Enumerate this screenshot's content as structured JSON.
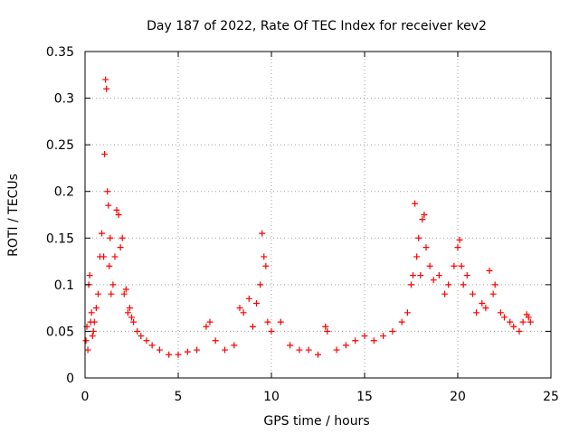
{
  "chart_data": {
    "type": "scatter",
    "title": "Day 187 of 2022, Rate Of TEC Index for receiver kev2",
    "xlabel": "GPS time / hours",
    "ylabel": "ROTI / TECUs",
    "xlim": [
      0,
      25
    ],
    "ylim": [
      0,
      0.35
    ],
    "x_ticks": [
      "0",
      "5",
      "10",
      "15",
      "20",
      "25"
    ],
    "y_ticks": [
      "0",
      "0.05",
      "0.1",
      "0.15",
      "0.2",
      "0.25",
      "0.3",
      "0.35"
    ],
    "grid": true,
    "legend": "none",
    "marker": "plus",
    "color": "#ff0000",
    "series": [
      {
        "x": [
          0.05,
          0.1,
          0.15,
          0.2,
          0.25,
          0.3,
          0.35,
          0.4,
          0.45,
          0.5,
          0.6,
          0.7,
          0.8,
          0.9,
          1.0,
          1.05,
          1.1,
          1.15,
          1.2,
          1.25,
          1.3,
          1.35,
          1.4,
          1.5,
          1.6,
          1.7,
          1.8,
          1.9,
          2.0,
          2.1,
          2.2,
          2.3,
          2.4,
          2.5,
          2.6,
          2.8,
          3.0,
          3.3,
          3.6,
          4.0,
          4.5,
          5.0,
          5.5,
          6.0,
          6.5,
          6.7,
          7.0,
          7.5,
          8.0,
          8.3,
          8.5,
          8.8,
          9.0,
          9.2,
          9.4,
          9.5,
          9.6,
          9.7,
          9.8,
          10.0,
          10.5,
          11.0,
          11.5,
          12.0,
          12.5,
          12.9,
          13.0,
          13.5,
          14.0,
          14.5,
          15.0,
          15.5,
          16.0,
          16.5,
          17.0,
          17.3,
          17.5,
          17.6,
          17.7,
          17.8,
          17.9,
          18.0,
          18.1,
          18.2,
          18.3,
          18.5,
          18.7,
          19.0,
          19.3,
          19.5,
          19.8,
          20.0,
          20.1,
          20.2,
          20.3,
          20.5,
          20.8,
          21.0,
          21.3,
          21.5,
          21.7,
          21.9,
          22.0,
          22.3,
          22.5,
          22.8,
          23.0,
          23.3,
          23.5,
          23.7,
          23.8,
          23.9
        ],
        "y": [
          0.04,
          0.055,
          0.03,
          0.1,
          0.11,
          0.06,
          0.07,
          0.045,
          0.05,
          0.06,
          0.075,
          0.09,
          0.13,
          0.155,
          0.13,
          0.24,
          0.32,
          0.31,
          0.2,
          0.185,
          0.12,
          0.15,
          0.09,
          0.1,
          0.13,
          0.18,
          0.175,
          0.14,
          0.15,
          0.09,
          0.095,
          0.07,
          0.075,
          0.065,
          0.06,
          0.05,
          0.045,
          0.04,
          0.035,
          0.03,
          0.025,
          0.025,
          0.028,
          0.03,
          0.055,
          0.06,
          0.04,
          0.03,
          0.035,
          0.075,
          0.07,
          0.085,
          0.055,
          0.08,
          0.1,
          0.155,
          0.13,
          0.12,
          0.06,
          0.05,
          0.06,
          0.035,
          0.03,
          0.03,
          0.025,
          0.055,
          0.05,
          0.03,
          0.035,
          0.04,
          0.045,
          0.04,
          0.045,
          0.05,
          0.06,
          0.07,
          0.1,
          0.11,
          0.187,
          0.13,
          0.15,
          0.11,
          0.17,
          0.175,
          0.14,
          0.12,
          0.105,
          0.11,
          0.09,
          0.1,
          0.12,
          0.14,
          0.148,
          0.12,
          0.1,
          0.11,
          0.09,
          0.07,
          0.08,
          0.075,
          0.115,
          0.09,
          0.1,
          0.07,
          0.065,
          0.06,
          0.055,
          0.05,
          0.06,
          0.068,
          0.065,
          0.06
        ]
      }
    ]
  }
}
